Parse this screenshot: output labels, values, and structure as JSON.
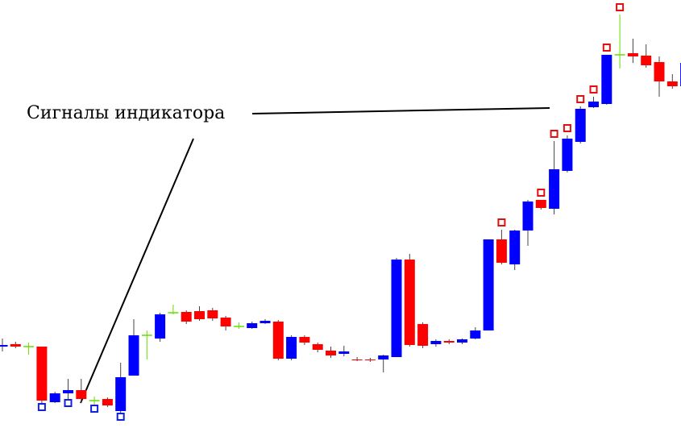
{
  "chart_data": {
    "type": "candlestick",
    "annotation": "Сигналы индикатора",
    "open": [
      101,
      104,
      101,
      101,
      32,
      43,
      47,
      34,
      36,
      21,
      65,
      115,
      111,
      143,
      144,
      145,
      146,
      137,
      126,
      124,
      130,
      132,
      86,
      113,
      104,
      96,
      92,
      85,
      85,
      85,
      88,
      209,
      129,
      104,
      108,
      106,
      111,
      121,
      234,
      203,
      245,
      283,
      272,
      319,
      355,
      398,
      402,
      463,
      465,
      462,
      454,
      430,
      424
    ],
    "high": [
      111,
      107,
      106,
      101,
      45,
      61,
      61,
      39,
      38,
      81,
      135,
      121,
      143,
      153,
      146,
      151,
      149,
      139,
      131,
      132,
      135,
      134,
      115,
      115,
      106,
      101,
      102,
      88,
      87,
      91,
      211,
      216,
      131,
      110,
      110,
      111,
      125,
      234,
      246,
      246,
      283,
      283,
      356,
      363,
      399,
      411,
      463,
      513,
      483,
      476,
      461,
      439,
      457
    ],
    "low": [
      95,
      99,
      91,
      31,
      31,
      36,
      31,
      29,
      26,
      19,
      65,
      85,
      107,
      141,
      129,
      133,
      133,
      121,
      123,
      123,
      129,
      84,
      84,
      103,
      94,
      87,
      89,
      83,
      82,
      69,
      88,
      101,
      99,
      101,
      104,
      104,
      110,
      121,
      203,
      196,
      226,
      271,
      265,
      317,
      353,
      397,
      401,
      446,
      453,
      447,
      411,
      421,
      411
    ],
    "close": [
      103,
      101,
      101,
      34,
      43,
      47,
      36,
      34,
      28,
      63,
      115,
      115,
      141,
      143,
      132,
      135,
      136,
      126,
      126,
      130,
      133,
      86,
      113,
      106,
      97,
      90,
      95,
      84,
      84,
      90,
      209,
      103,
      102,
      108,
      106,
      110,
      121,
      234,
      205,
      245,
      281,
      273,
      321,
      359,
      396,
      405,
      463,
      463,
      461,
      450,
      430,
      424,
      453
    ],
    "sell_signals": [
      38,
      41,
      42,
      43,
      44,
      45,
      46,
      47
    ],
    "buy_signals": [
      3,
      5,
      7,
      9
    ],
    "up_color": "#0000ff",
    "down_color": "#ff0000",
    "doji_color": "#66dd00",
    "sell_signal_color": "#e01010",
    "buy_signal_color": "#1020e0",
    "ylim": [
      0,
      531
    ]
  }
}
